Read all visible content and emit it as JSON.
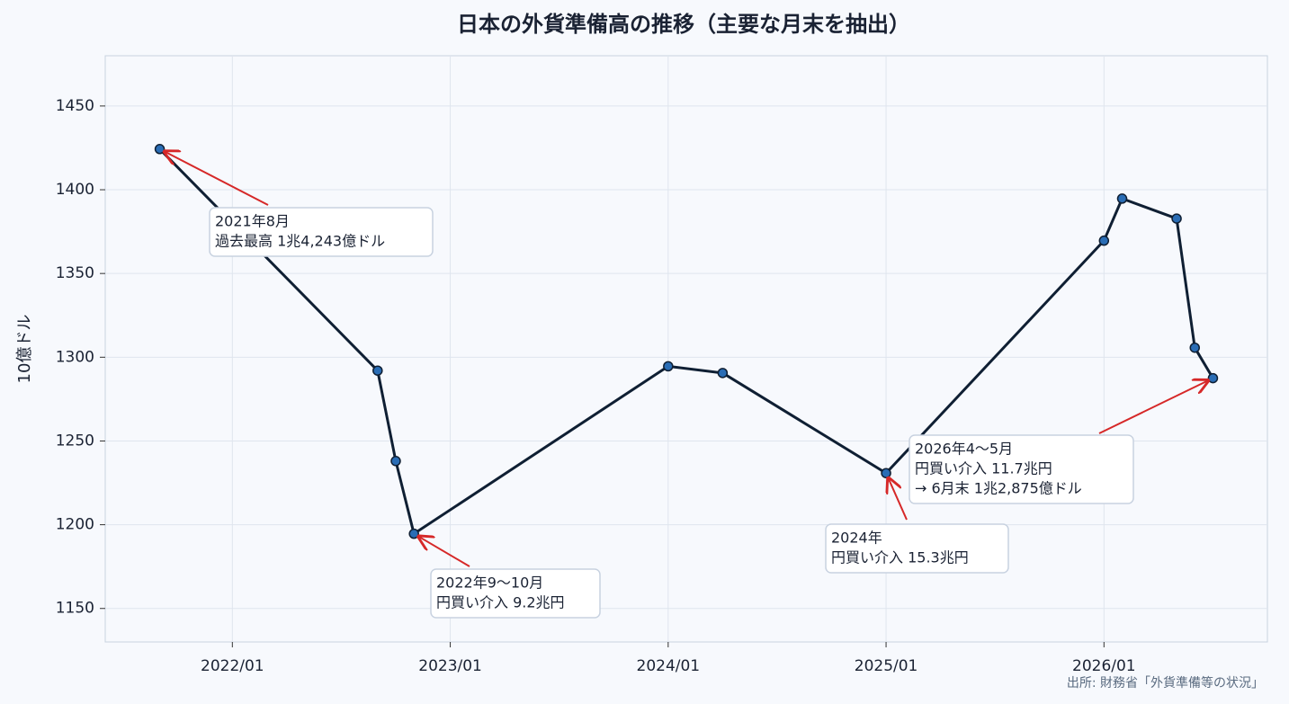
{
  "chart_data": {
    "type": "line",
    "title": "日本の外貨準備高の推移（主要な月末を抽出）",
    "y_label": "10億ドル",
    "source": "出所: 財務省「外貨準備等の状況」",
    "x": [
      "2021/08",
      "2022/08",
      "2022/09",
      "2022/10",
      "2023/12",
      "2024/03",
      "2024/12",
      "2025/12",
      "2026/01",
      "2026/04",
      "2026/05",
      "2026/06"
    ],
    "values": [
      1424.3,
      1292,
      1238,
      1194.6,
      1294.6,
      1290.6,
      1230.8,
      1369.6,
      1394.7,
      1382.8,
      1305.7,
      1287.5
    ],
    "color": "#0f1f33",
    "marker_color": "#2a6db5",
    "xlim": [
      "2021/06",
      "2026/10"
    ],
    "xticks": [
      "2022/01",
      "2023/01",
      "2024/01",
      "2025/01",
      "2026/01"
    ],
    "ylim": [
      1130,
      1480
    ],
    "yticks": [
      1150,
      1200,
      1250,
      1300,
      1350,
      1400,
      1450
    ],
    "grid": true,
    "annotations": [
      [
        "2021年8月",
        "過去最高 1兆4,243億ドル"
      ],
      [
        "2022年9〜10月",
        "円買い介入 9.2兆円"
      ],
      [
        "2024年",
        "円買い介入 15.3兆円"
      ],
      [
        "2026年4〜5月",
        "円買い介入 11.7兆円",
        "→ 6月末 1兆2,875億ドル"
      ]
    ],
    "annotation_color": "#d62828"
  }
}
